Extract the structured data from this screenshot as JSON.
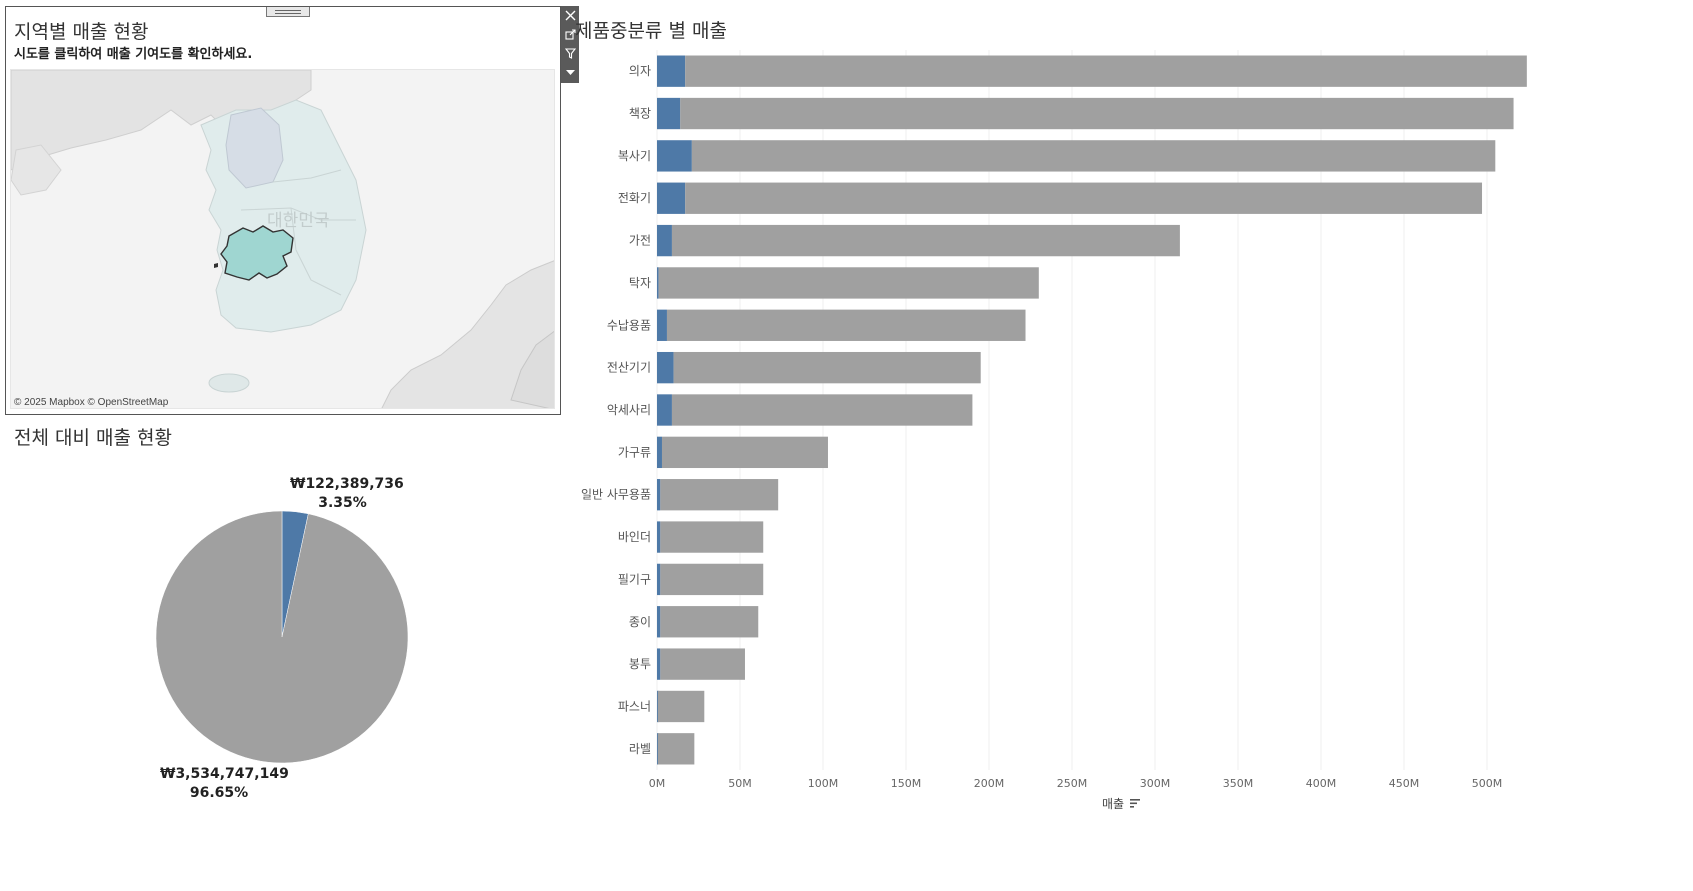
{
  "map_panel": {
    "title": "지역별 매출 현황",
    "subtitle": "시도를 클릭하여 매출 기여도를 확인하세요.",
    "country_label": "대한민국",
    "credit": "© 2025 Mapbox © OpenStreetMap",
    "toolbar": {
      "close_icon": "close-icon",
      "popout_icon": "external-link-icon",
      "filter_icon": "filter-icon",
      "more_icon": "caret-down-icon"
    },
    "highlight_color": "#9fd6d1"
  },
  "pie_panel": {
    "title": "전체 대비 매출 현황",
    "slices": [
      {
        "amount": "₩122,389,736",
        "percent": "3.35%",
        "value": 3.35,
        "color": "#4e79a7"
      },
      {
        "amount": "₩3,534,747,149",
        "percent": "96.65%",
        "value": 96.65,
        "color": "#a0a0a0"
      }
    ]
  },
  "bar_panel": {
    "title": "제품중분류 별 매출",
    "colors": {
      "selected": "#4e79a7",
      "rest": "#a0a0a0"
    },
    "chart_data": {
      "type": "bar",
      "orientation": "horizontal",
      "stacked": true,
      "categories": [
        "의자",
        "책장",
        "복사기",
        "전화기",
        "가전",
        "탁자",
        "수납용품",
        "전산기기",
        "악세사리",
        "가구류",
        "일반 사무용품",
        "바인더",
        "필기구",
        "종이",
        "봉투",
        "파스너",
        "라벨"
      ],
      "series": [
        {
          "values": [
            17,
            14,
            21,
            17,
            9,
            1,
            6,
            10,
            9,
            3,
            2,
            2,
            2,
            2,
            2,
            0.5,
            0.5
          ]
        },
        {
          "values": [
            507,
            502,
            484,
            480,
            306,
            229,
            216,
            185,
            181,
            100,
            71,
            62,
            62,
            59,
            51,
            28,
            22
          ]
        }
      ],
      "xlabel": "매출",
      "x_ticks": [
        "0M",
        "50M",
        "100M",
        "150M",
        "200M",
        "250M",
        "300M",
        "350M",
        "400M",
        "450M",
        "500M"
      ],
      "xlim": [
        0,
        550
      ],
      "grid": true
    }
  }
}
